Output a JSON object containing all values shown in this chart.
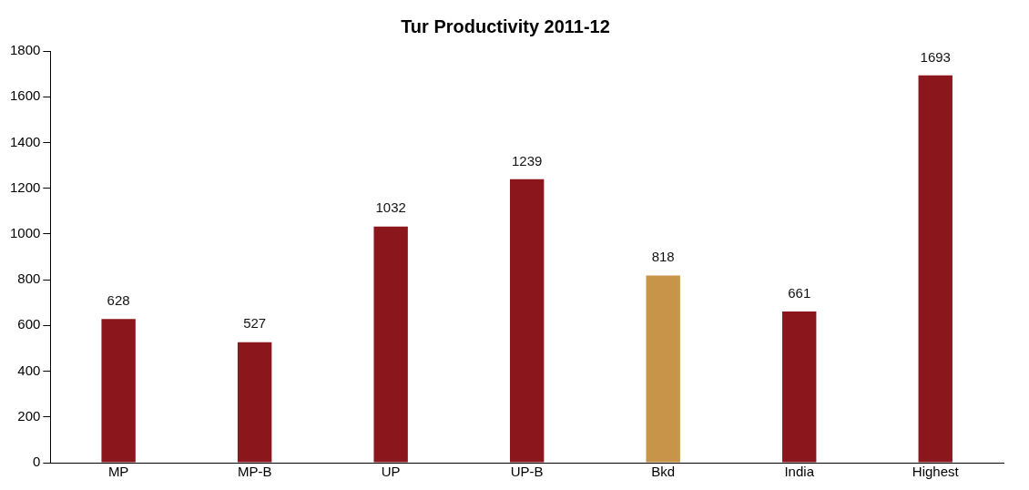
{
  "chart_data": {
    "type": "bar",
    "title": "Tur Productivity 2011-12",
    "categories": [
      "MP",
      "MP-B",
      "UP",
      "UP-B",
      "Bkd",
      "India",
      "Highest"
    ],
    "values": [
      628,
      527,
      1032,
      1239,
      818,
      661,
      1693
    ],
    "colors": [
      "#8b171d",
      "#8b171d",
      "#8b171d",
      "#8b171d",
      "#c8944a",
      "#8b171d",
      "#8b171d"
    ],
    "ylim": [
      0,
      1800
    ],
    "yticks": [
      0,
      200,
      400,
      600,
      800,
      1000,
      1200,
      1400,
      1600,
      1800
    ],
    "grid": false,
    "legend": false,
    "data_labels": true
  }
}
